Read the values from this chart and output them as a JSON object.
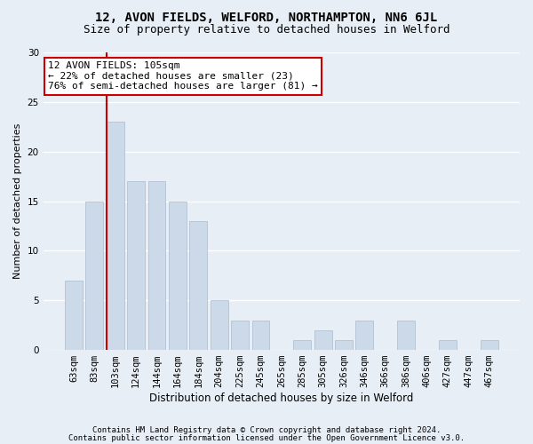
{
  "title1": "12, AVON FIELDS, WELFORD, NORTHAMPTON, NN6 6JL",
  "title2": "Size of property relative to detached houses in Welford",
  "xlabel": "Distribution of detached houses by size in Welford",
  "ylabel": "Number of detached properties",
  "categories": [
    "63sqm",
    "83sqm",
    "103sqm",
    "124sqm",
    "144sqm",
    "164sqm",
    "184sqm",
    "204sqm",
    "225sqm",
    "245sqm",
    "265sqm",
    "285sqm",
    "305sqm",
    "326sqm",
    "346sqm",
    "366sqm",
    "386sqm",
    "406sqm",
    "427sqm",
    "447sqm",
    "467sqm"
  ],
  "values": [
    7,
    15,
    23,
    17,
    17,
    15,
    13,
    5,
    3,
    3,
    0,
    1,
    2,
    1,
    3,
    0,
    3,
    0,
    1,
    0,
    1
  ],
  "bar_color": "#ccd9e8",
  "bar_edge_color": "#aabcce",
  "vline_color": "#cc0000",
  "annotation_text": "12 AVON FIELDS: 105sqm\n← 22% of detached houses are smaller (23)\n76% of semi-detached houses are larger (81) →",
  "annotation_box_facecolor": "#ffffff",
  "annotation_box_edgecolor": "#cc0000",
  "ylim": [
    0,
    30
  ],
  "yticks": [
    0,
    5,
    10,
    15,
    20,
    25,
    30
  ],
  "footer1": "Contains HM Land Registry data © Crown copyright and database right 2024.",
  "footer2": "Contains public sector information licensed under the Open Government Licence v3.0.",
  "background_color": "#e8eef5",
  "grid_color": "#ffffff",
  "title1_fontsize": 10,
  "title2_fontsize": 9,
  "xlabel_fontsize": 8.5,
  "ylabel_fontsize": 8,
  "tick_fontsize": 7.5,
  "annotation_fontsize": 8,
  "footer_fontsize": 6.5
}
